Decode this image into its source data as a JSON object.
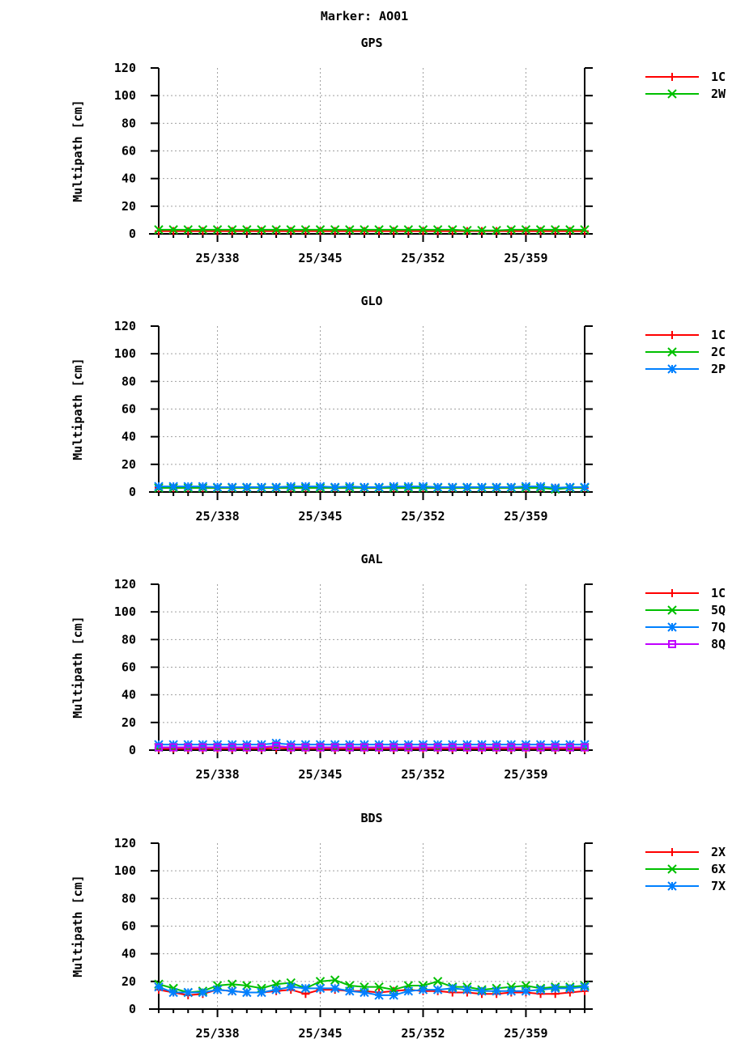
{
  "title": "Marker: AO01",
  "chart_data": [
    {
      "type": "line",
      "title": "GPS",
      "ylabel": "Multipath [cm]",
      "xlabel": "",
      "ylim": [
        0,
        120
      ],
      "yticks": [
        0,
        20,
        40,
        60,
        80,
        100,
        120
      ],
      "xlim": [
        334,
        363
      ],
      "xticks": [
        338,
        345,
        352,
        359
      ],
      "xtick_labels": [
        "25/338",
        "25/345",
        "25/352",
        "25/359"
      ],
      "grid": true,
      "legend": "right",
      "x": [
        334,
        335,
        336,
        337,
        338,
        339,
        340,
        341,
        342,
        343,
        344,
        345,
        346,
        347,
        348,
        349,
        350,
        351,
        352,
        353,
        354,
        355,
        356,
        357,
        358,
        359,
        360,
        361,
        362,
        363
      ],
      "series": [
        {
          "name": "1C",
          "color": "#ff0000",
          "marker": "plus",
          "values": [
            2,
            2,
            2,
            2,
            2,
            2,
            2,
            2,
            2,
            2,
            2,
            2,
            2,
            2,
            2,
            2,
            2,
            2,
            2,
            2,
            2,
            2,
            2,
            2,
            2,
            2,
            2,
            2,
            2,
            2
          ]
        },
        {
          "name": "2W",
          "color": "#00c000",
          "marker": "cross",
          "values": [
            3,
            3,
            3,
            3,
            3,
            3,
            3,
            3,
            3,
            3,
            3,
            3,
            3,
            3,
            3,
            3,
            3,
            3,
            3,
            3,
            3,
            2.5,
            2.5,
            2.5,
            3,
            3,
            3,
            3,
            3,
            3
          ]
        }
      ]
    },
    {
      "type": "line",
      "title": "GLO",
      "ylabel": "Multipath [cm]",
      "xlabel": "",
      "ylim": [
        0,
        120
      ],
      "yticks": [
        0,
        20,
        40,
        60,
        80,
        100,
        120
      ],
      "xlim": [
        334,
        363
      ],
      "xticks": [
        338,
        345,
        352,
        359
      ],
      "xtick_labels": [
        "25/338",
        "25/345",
        "25/352",
        "25/359"
      ],
      "grid": true,
      "legend": "right",
      "x": [
        334,
        335,
        336,
        337,
        338,
        339,
        340,
        341,
        342,
        343,
        344,
        345,
        346,
        347,
        348,
        349,
        350,
        351,
        352,
        353,
        354,
        355,
        356,
        357,
        358,
        359,
        360,
        361,
        362,
        363
      ],
      "series": [
        {
          "name": "1C",
          "color": "#ff0000",
          "marker": "plus",
          "values": [
            3,
            3,
            3,
            3,
            3,
            3,
            3,
            3,
            3,
            3,
            3,
            3,
            3,
            3,
            3,
            3,
            3,
            3,
            3,
            3,
            3,
            3,
            3,
            3,
            3,
            3,
            3,
            3,
            3,
            3
          ]
        },
        {
          "name": "2C",
          "color": "#00c000",
          "marker": "cross",
          "values": [
            3,
            3,
            3,
            3,
            3,
            3,
            3,
            3,
            3,
            3,
            3,
            3,
            3,
            3,
            3,
            3,
            3,
            3,
            3,
            3,
            3,
            3,
            3,
            3,
            3,
            3,
            3,
            2,
            3,
            3
          ]
        },
        {
          "name": "2P",
          "color": "#0080ff",
          "marker": "star",
          "values": [
            4,
            4,
            4,
            4,
            3.5,
            3.5,
            3.5,
            3.5,
            3.5,
            4,
            4,
            4,
            3.5,
            4,
            3.5,
            3.5,
            4,
            4,
            4,
            3.5,
            3.5,
            3.5,
            3.5,
            3.5,
            3.5,
            4,
            4,
            3,
            3.5,
            3.5
          ]
        }
      ]
    },
    {
      "type": "line",
      "title": "GAL",
      "ylabel": "Multipath [cm]",
      "xlabel": "",
      "ylim": [
        0,
        120
      ],
      "yticks": [
        0,
        20,
        40,
        60,
        80,
        100,
        120
      ],
      "xlim": [
        334,
        363
      ],
      "xticks": [
        338,
        345,
        352,
        359
      ],
      "xtick_labels": [
        "25/338",
        "25/345",
        "25/352",
        "25/359"
      ],
      "grid": true,
      "legend": "right",
      "x": [
        334,
        335,
        336,
        337,
        338,
        339,
        340,
        341,
        342,
        343,
        344,
        345,
        346,
        347,
        348,
        349,
        350,
        351,
        352,
        353,
        354,
        355,
        356,
        357,
        358,
        359,
        360,
        361,
        362,
        363
      ],
      "series": [
        {
          "name": "1C",
          "color": "#ff0000",
          "marker": "plus",
          "values": [
            1,
            1,
            1,
            1,
            1,
            1,
            1,
            1,
            1.5,
            1,
            1,
            1,
            1,
            1,
            1,
            1,
            1,
            1,
            1,
            1,
            1,
            1,
            1,
            1,
            1,
            1,
            1,
            1,
            1,
            1
          ]
        },
        {
          "name": "5Q",
          "color": "#00c000",
          "marker": "cross",
          "values": [
            2,
            2,
            2,
            2,
            2,
            2,
            2,
            2,
            3,
            2,
            2,
            2,
            2,
            2,
            2,
            2,
            2,
            2,
            2,
            2,
            2,
            2,
            2,
            2,
            2,
            2,
            2,
            2,
            2,
            2
          ]
        },
        {
          "name": "7Q",
          "color": "#0080ff",
          "marker": "star",
          "values": [
            4,
            4,
            4,
            4,
            4,
            4,
            4,
            4,
            5,
            4,
            4,
            4,
            4,
            4,
            4,
            4,
            4,
            4,
            4,
            4,
            4,
            4,
            4,
            4,
            4,
            4,
            4,
            4,
            4,
            4
          ]
        },
        {
          "name": "8Q",
          "color": "#c000ff",
          "marker": "square",
          "values": [
            2,
            2,
            2,
            2,
            2,
            2,
            2,
            2,
            3,
            2,
            2,
            2,
            2,
            2,
            2,
            2,
            2,
            2,
            2,
            2,
            2,
            2,
            2,
            2,
            2,
            2,
            2,
            2,
            2,
            2
          ]
        }
      ]
    },
    {
      "type": "line",
      "title": "BDS",
      "ylabel": "Multipath [cm]",
      "xlabel": "",
      "ylim": [
        0,
        120
      ],
      "yticks": [
        0,
        20,
        40,
        60,
        80,
        100,
        120
      ],
      "xlim": [
        334,
        363
      ],
      "xticks": [
        338,
        345,
        352,
        359
      ],
      "xtick_labels": [
        "25/338",
        "25/345",
        "25/352",
        "25/359"
      ],
      "grid": true,
      "legend": "right",
      "x": [
        334,
        335,
        336,
        337,
        338,
        339,
        340,
        341,
        342,
        343,
        344,
        345,
        346,
        347,
        348,
        349,
        350,
        351,
        352,
        353,
        354,
        355,
        356,
        357,
        358,
        359,
        360,
        361,
        362,
        363
      ],
      "series": [
        {
          "name": "2X",
          "color": "#ff0000",
          "marker": "plus",
          "values": [
            14,
            12,
            10,
            11,
            14,
            13,
            12,
            12,
            13,
            14,
            11,
            14,
            14,
            13,
            13,
            12,
            13,
            14,
            13,
            13,
            12,
            12,
            11,
            11,
            12,
            12,
            11,
            11,
            12,
            13
          ]
        },
        {
          "name": "6X",
          "color": "#00c000",
          "marker": "cross",
          "values": [
            18,
            15,
            12,
            13,
            17,
            18,
            17,
            15,
            18,
            19,
            15,
            20,
            21,
            17,
            16,
            16,
            14,
            17,
            17,
            20,
            16,
            16,
            14,
            15,
            16,
            17,
            15,
            16,
            16,
            17
          ]
        },
        {
          "name": "7X",
          "color": "#0080ff",
          "marker": "star",
          "values": [
            16,
            12,
            12,
            12,
            14,
            13,
            12,
            12,
            14,
            16,
            15,
            15,
            15,
            13,
            12,
            10,
            10,
            13,
            14,
            14,
            15,
            14,
            13,
            13,
            13,
            13,
            14,
            15,
            15,
            16
          ]
        }
      ]
    }
  ]
}
